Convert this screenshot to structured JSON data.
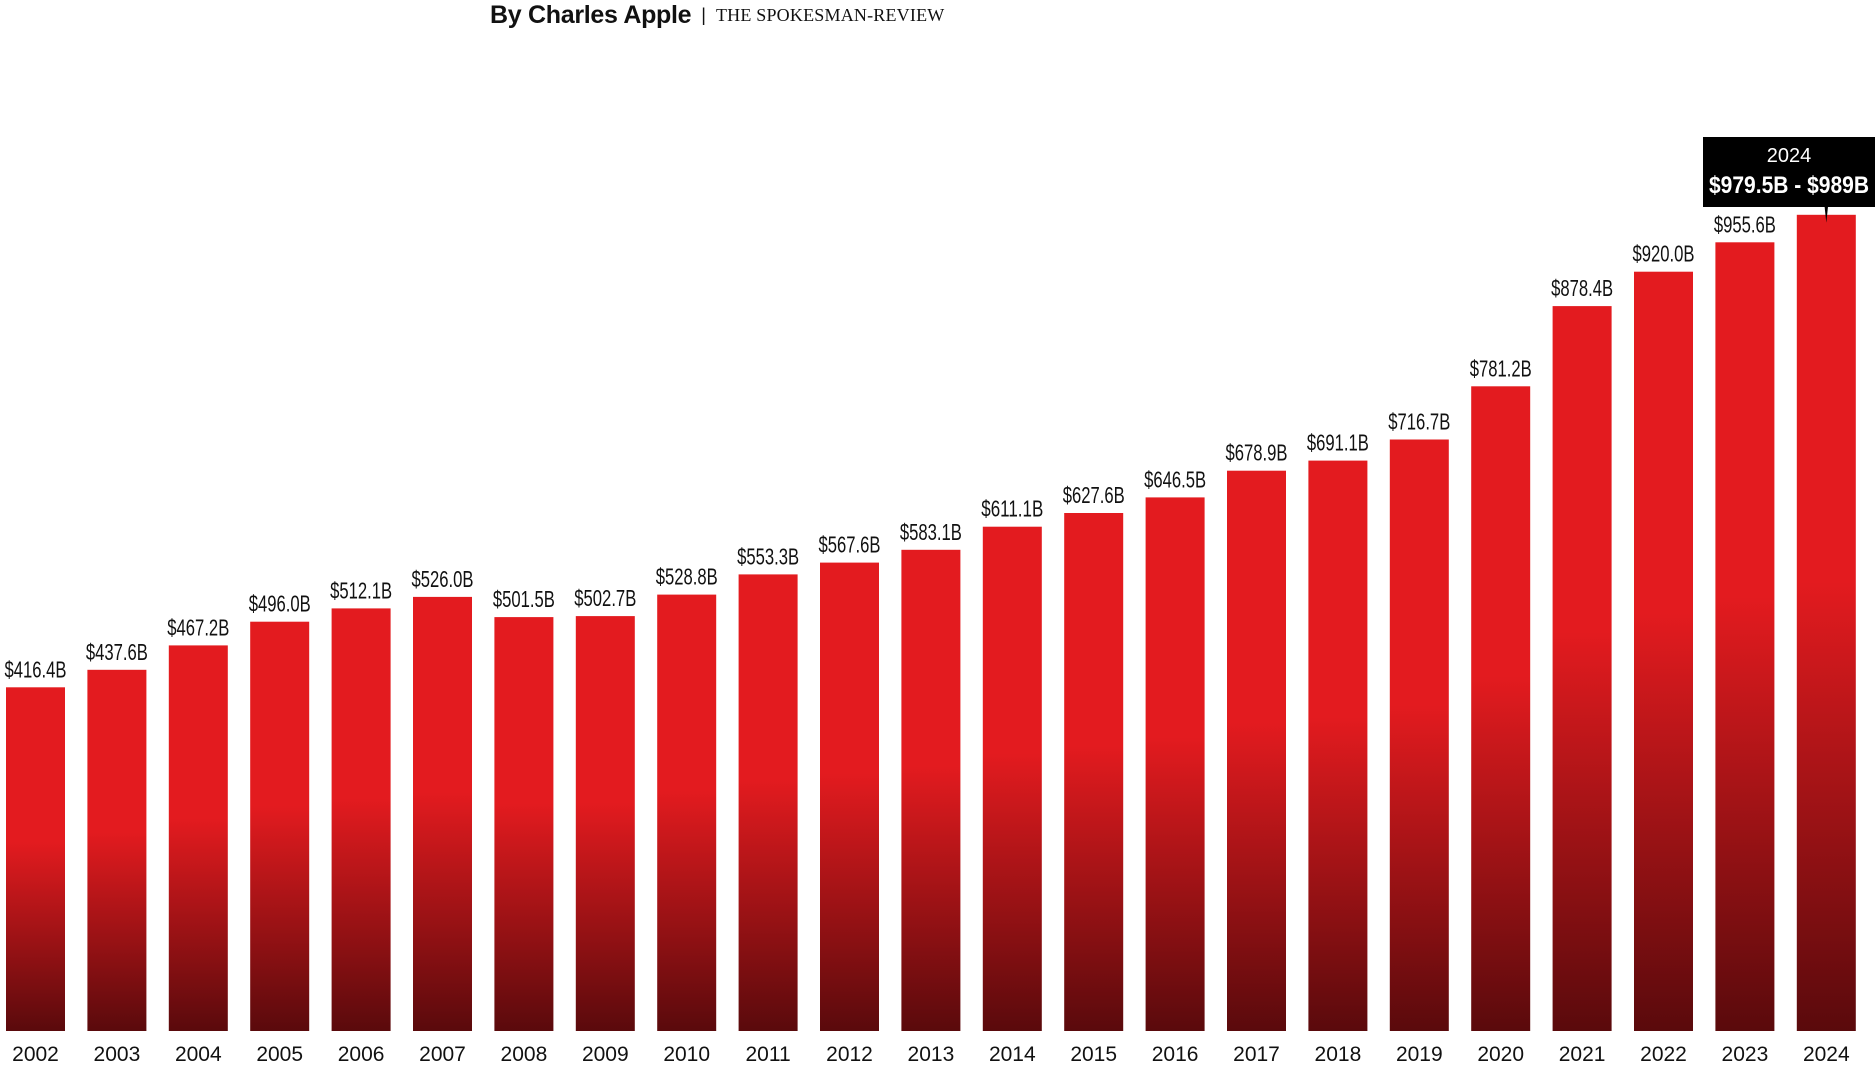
{
  "byline": {
    "author": "By Charles Apple",
    "separator": "|",
    "publication": "THE SPOKESMAN-REVIEW"
  },
  "colors": {
    "bar_top": "#e31b1f",
    "bar_bottom": "#5a0a0c",
    "callout_bg": "#000000",
    "callout_text": "#ffffff",
    "text": "#111111"
  },
  "chart_data": {
    "type": "bar",
    "title": "",
    "xlabel": "",
    "ylabel": "",
    "categories": [
      "2002",
      "2003",
      "2004",
      "2005",
      "2006",
      "2007",
      "2008",
      "2009",
      "2010",
      "2011",
      "2012",
      "2013",
      "2014",
      "2015",
      "2016",
      "2017",
      "2018",
      "2019",
      "2020",
      "2021",
      "2022",
      "2023",
      "2024"
    ],
    "values": [
      416.4,
      437.6,
      467.2,
      496.0,
      512.1,
      526.0,
      501.5,
      502.7,
      528.8,
      553.3,
      567.6,
      583.1,
      611.1,
      627.6,
      646.5,
      678.9,
      691.1,
      716.7,
      781.2,
      878.4,
      920.0,
      955.6,
      989
    ],
    "value_labels": [
      "$416.4B",
      "$437.6B",
      "$467.2B",
      "$496.0B",
      "$512.1B",
      "$526.0B",
      "$501.5B",
      "$502.7B",
      "$528.8B",
      "$553.3B",
      "$567.6B",
      "$583.1B",
      "$611.1B",
      "$627.6B",
      "$646.5B",
      "$678.9B",
      "$691.1B",
      "$716.7B",
      "$781.2B",
      "$878.4B",
      "$920.0B",
      "$955.6B",
      ""
    ],
    "grid": false,
    "legend": "none",
    "callout": {
      "year": "2024",
      "range_text": "$979.5B - $989B",
      "range_low": 979.5,
      "range_high": 989
    }
  }
}
